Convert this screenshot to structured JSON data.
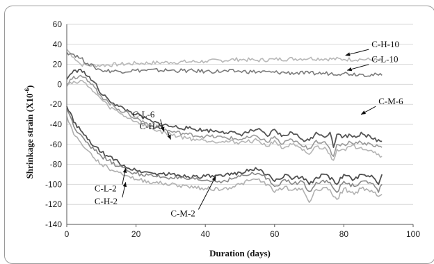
{
  "chart_data": {
    "type": "line",
    "title": "",
    "xlabel": "Duration (days)",
    "ylabel_main": "Shrinkage strain (X10",
    "ylabel_exp": "-6",
    "ylabel_close": ")",
    "xlim": [
      0,
      100
    ],
    "ylim": [
      -140,
      60
    ],
    "xticks": [
      "0",
      "20",
      "40",
      "60",
      "80",
      "100"
    ],
    "yticks": [
      "60",
      "40",
      "20",
      "0",
      "-20",
      "-40",
      "-60",
      "-80",
      "-100",
      "-120",
      "-140"
    ],
    "grid": "horizontal",
    "series": [
      {
        "name": "C-H-10",
        "color": "#b8b8b8",
        "width": 1.6,
        "x": [
          0,
          2,
          4,
          6,
          10,
          15,
          20,
          30,
          40,
          50,
          55,
          60,
          70,
          80,
          85,
          91
        ],
        "y": [
          35,
          27,
          20,
          19,
          19,
          20,
          21,
          22,
          23,
          25,
          24,
          25,
          26,
          25,
          25,
          24
        ]
      },
      {
        "name": "C-L-10",
        "color": "#7a7a7a",
        "width": 1.6,
        "x": [
          0,
          2,
          4,
          6,
          8,
          10,
          15,
          20,
          30,
          40,
          50,
          60,
          70,
          80,
          85,
          91
        ],
        "y": [
          32,
          30,
          26,
          21,
          17,
          14,
          13,
          14,
          14,
          13,
          13,
          12,
          11,
          11,
          10,
          9
        ]
      },
      {
        "name": "C-M-6",
        "color": "#555555",
        "width": 1.8,
        "x": [
          0,
          1,
          2,
          3,
          4,
          5,
          6,
          8,
          10,
          12,
          15,
          18,
          20,
          25,
          30,
          35,
          40,
          45,
          50,
          55,
          58,
          60,
          62,
          65,
          68,
          70,
          72,
          75,
          76,
          77,
          78,
          80,
          82,
          84,
          85,
          88,
          91
        ],
        "y": [
          5,
          10,
          14,
          12,
          15,
          13,
          8,
          2,
          -10,
          -15,
          -22,
          -27,
          -30,
          -38,
          -42,
          -44,
          -46,
          -47,
          -50,
          -45,
          -52,
          -45,
          -52,
          -48,
          -55,
          -56,
          -48,
          -52,
          -48,
          -63,
          -50,
          -52,
          -51,
          -52,
          -48,
          -54,
          -57
        ]
      },
      {
        "name": "C-L-6",
        "color": "#999999",
        "width": 1.6,
        "x": [
          0,
          1,
          2,
          3,
          4,
          5,
          6,
          8,
          10,
          12,
          15,
          18,
          20,
          25,
          30,
          35,
          40,
          45,
          50,
          55,
          58,
          60,
          62,
          65,
          68,
          70,
          72,
          75,
          77,
          78,
          80,
          82,
          85,
          88,
          91
        ],
        "y": [
          0,
          5,
          8,
          6,
          9,
          7,
          3,
          -3,
          -12,
          -18,
          -25,
          -30,
          -34,
          -42,
          -47,
          -50,
          -52,
          -53,
          -55,
          -52,
          -58,
          -52,
          -60,
          -55,
          -62,
          -64,
          -56,
          -60,
          -72,
          -60,
          -60,
          -58,
          -58,
          -60,
          -63
        ]
      },
      {
        "name": "C-H-6",
        "color": "#b5b5b5",
        "width": 1.6,
        "x": [
          0,
          1,
          2,
          3,
          4,
          5,
          6,
          8,
          10,
          12,
          15,
          18,
          20,
          25,
          30,
          35,
          40,
          45,
          50,
          55,
          58,
          60,
          62,
          65,
          68,
          70,
          72,
          75,
          77,
          78,
          80,
          82,
          85,
          88,
          91
        ],
        "y": [
          -2,
          2,
          3,
          1,
          4,
          2,
          -2,
          -8,
          -15,
          -22,
          -28,
          -34,
          -37,
          -45,
          -50,
          -54,
          -56,
          -57,
          -58,
          -56,
          -62,
          -56,
          -64,
          -60,
          -66,
          -70,
          -62,
          -65,
          -76,
          -65,
          -65,
          -62,
          -63,
          -66,
          -72
        ]
      },
      {
        "name": "C-M-2",
        "color": "#4f4f4f",
        "width": 1.8,
        "x": [
          0,
          1,
          2,
          4,
          6,
          8,
          10,
          12,
          15,
          18,
          20,
          25,
          30,
          35,
          40,
          45,
          50,
          53,
          55,
          58,
          60,
          63,
          65,
          68,
          70,
          72,
          75,
          78,
          80,
          83,
          85,
          88,
          90,
          91
        ],
        "y": [
          -22,
          -28,
          -38,
          -46,
          -55,
          -62,
          -68,
          -72,
          -78,
          -84,
          -86,
          -89,
          -90,
          -92,
          -92,
          -92,
          -88,
          -85,
          -85,
          -90,
          -97,
          -90,
          -95,
          -92,
          -100,
          -93,
          -90,
          -100,
          -90,
          -95,
          -90,
          -91,
          -100,
          -90
        ]
      },
      {
        "name": "C-L-2",
        "color": "#888888",
        "width": 1.6,
        "x": [
          0,
          1,
          2,
          4,
          6,
          8,
          10,
          12,
          15,
          18,
          20,
          25,
          30,
          35,
          40,
          45,
          50,
          53,
          55,
          58,
          60,
          63,
          65,
          68,
          70,
          72,
          75,
          78,
          80,
          83,
          85,
          88,
          90,
          91
        ],
        "y": [
          -25,
          -32,
          -42,
          -50,
          -58,
          -66,
          -72,
          -76,
          -82,
          -87,
          -89,
          -92,
          -93,
          -95,
          -96,
          -97,
          -92,
          -90,
          -89,
          -94,
          -102,
          -95,
          -100,
          -97,
          -107,
          -98,
          -96,
          -108,
          -97,
          -102,
          -97,
          -99,
          -108,
          -100
        ]
      },
      {
        "name": "C-H-2",
        "color": "#b0b0b0",
        "width": 1.6,
        "x": [
          0,
          1,
          2,
          4,
          6,
          8,
          10,
          12,
          15,
          18,
          20,
          25,
          30,
          35,
          40,
          45,
          50,
          53,
          55,
          58,
          60,
          63,
          65,
          68,
          70,
          72,
          75,
          78,
          80,
          83,
          85,
          88,
          90,
          91
        ],
        "y": [
          -32,
          -40,
          -50,
          -58,
          -66,
          -74,
          -80,
          -84,
          -88,
          -92,
          -95,
          -98,
          -100,
          -102,
          -104,
          -105,
          -100,
          -96,
          -95,
          -100,
          -108,
          -102,
          -106,
          -104,
          -118,
          -105,
          -103,
          -115,
          -104,
          -110,
          -104,
          -106,
          -112,
          -110
        ]
      }
    ],
    "annotations": [
      {
        "text": "C-H-10",
        "tx": 88,
        "ty": 37,
        "ax": 80.5,
        "ay": 29
      },
      {
        "text": "C-L-10",
        "tx": 88,
        "ty": 22,
        "ax": 81,
        "ay": 14
      },
      {
        "text": "C-M-6",
        "tx": 90,
        "ty": -20,
        "ax": 85,
        "ay": -30
      },
      {
        "text": "C-L-6",
        "tx": 19,
        "ty": -33,
        "ax": 28,
        "ay": -47
      },
      {
        "text": "C-H-6",
        "tx": 21,
        "ty": -45,
        "ax": 30,
        "ay": -55
      },
      {
        "text": "C-M-2",
        "tx": 30,
        "ty": -132,
        "ax": 43,
        "ay": -92
      },
      {
        "text": "C-L-2",
        "tx": 8,
        "ty": -107,
        "ax": 17,
        "ay": -84
      },
      {
        "text": "C-H-2",
        "tx": 8,
        "ty": -120,
        "ax": 17,
        "ay": -98
      }
    ]
  }
}
